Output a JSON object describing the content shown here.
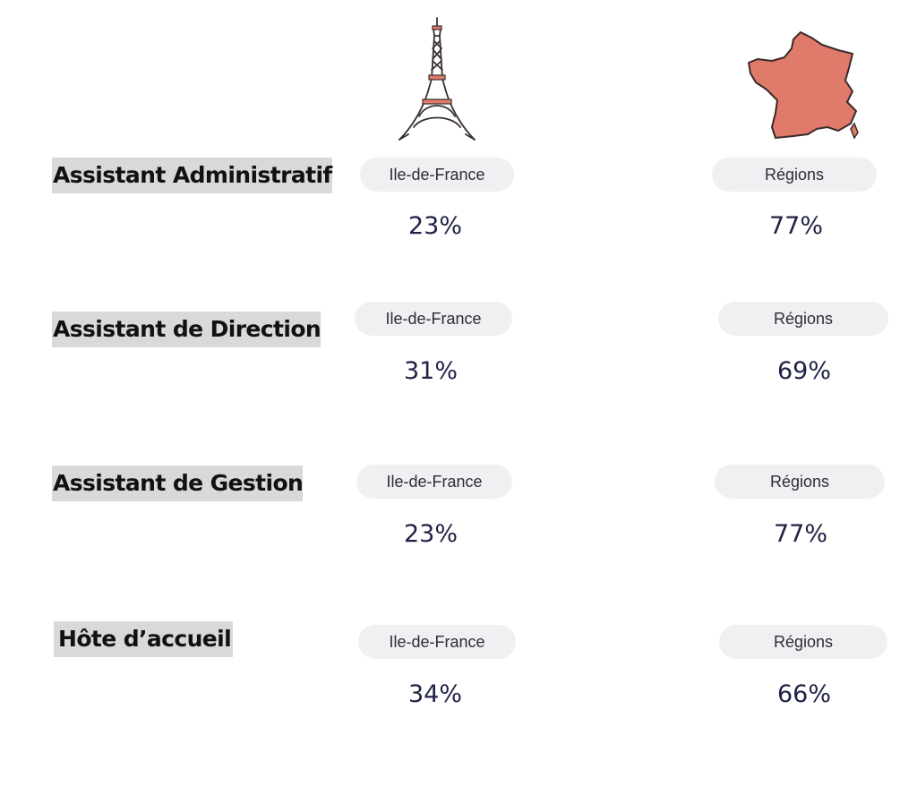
{
  "icons": {
    "idf": "eiffel-tower-icon",
    "regions": "france-map-icon",
    "france_map_color": "#e07a6a"
  },
  "rows": [
    {
      "role": "Assistant Administratif",
      "idf_label": "Ile-de-France",
      "idf_value": "23%",
      "reg_label": "Régions",
      "reg_value": "77%"
    },
    {
      "role": "Assistant de Direction",
      "idf_label": "Ile-de-France",
      "idf_value": "31%",
      "reg_label": "Régions",
      "reg_value": "69%"
    },
    {
      "role": "Assistant de Gestion",
      "idf_label": "Ile-de-France",
      "idf_value": "23%",
      "reg_label": "Régions",
      "reg_value": "77%"
    },
    {
      "role": "Hôte d’accueil",
      "idf_label": "Ile-de-France",
      "idf_value": "34%",
      "reg_label": "Régions",
      "reg_value": "66%"
    }
  ],
  "colors": {
    "role_highlight": "#d9d9d9",
    "pill_bg": "#f0f0f3",
    "percent_text": "#1e2145"
  }
}
